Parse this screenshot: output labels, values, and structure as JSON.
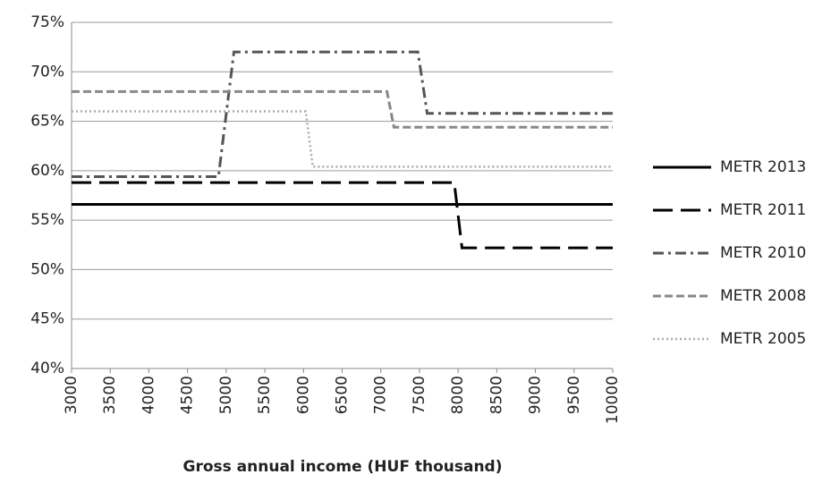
{
  "chart_data": {
    "type": "line",
    "x_label": "Gross annual income (HUF thousand)",
    "xlim": [
      3000,
      10000
    ],
    "xticks": [
      3000,
      3500,
      4000,
      4500,
      5000,
      5500,
      6000,
      6500,
      7000,
      7500,
      8000,
      8500,
      9000,
      9500,
      10000
    ],
    "ylim": [
      40,
      75
    ],
    "yticks": [
      {
        "value": 40,
        "label": "40%"
      },
      {
        "value": 45,
        "label": "45%"
      },
      {
        "value": 50,
        "label": "50%"
      },
      {
        "value": 55,
        "label": "55%"
      },
      {
        "value": 60,
        "label": "60%"
      },
      {
        "value": 65,
        "label": "65%"
      },
      {
        "value": 70,
        "label": "70%"
      },
      {
        "value": 75,
        "label": "75%"
      }
    ],
    "grid": true,
    "legend": "right",
    "series": [
      {
        "name": "METR 2013",
        "color": "#000000",
        "dash": "solid",
        "x": [
          3000,
          10000
        ],
        "values": [
          56.6,
          56.6
        ]
      },
      {
        "name": "METR 2011",
        "color": "#000000",
        "dash": "long-dash",
        "x": [
          3000,
          7950,
          8050,
          10000
        ],
        "values": [
          58.8,
          58.8,
          52.2,
          52.2
        ]
      },
      {
        "name": "METR 2010",
        "color": "#555555",
        "dash": "dash-dot",
        "x": [
          3000,
          4900,
          5100,
          7480,
          7600,
          10000
        ],
        "values": [
          59.4,
          59.4,
          72,
          72,
          65.8,
          65.8
        ]
      },
      {
        "name": "METR 2008",
        "color": "#888888",
        "dash": "dash",
        "x": [
          3000,
          7080,
          7170,
          10000
        ],
        "values": [
          68,
          68,
          64.4,
          64.4
        ]
      },
      {
        "name": "METR 2005",
        "color": "#aaaaaa",
        "dash": "dot",
        "x": [
          3000,
          6030,
          6120,
          10000
        ],
        "values": [
          66,
          66,
          60.4,
          60.4
        ]
      }
    ]
  }
}
